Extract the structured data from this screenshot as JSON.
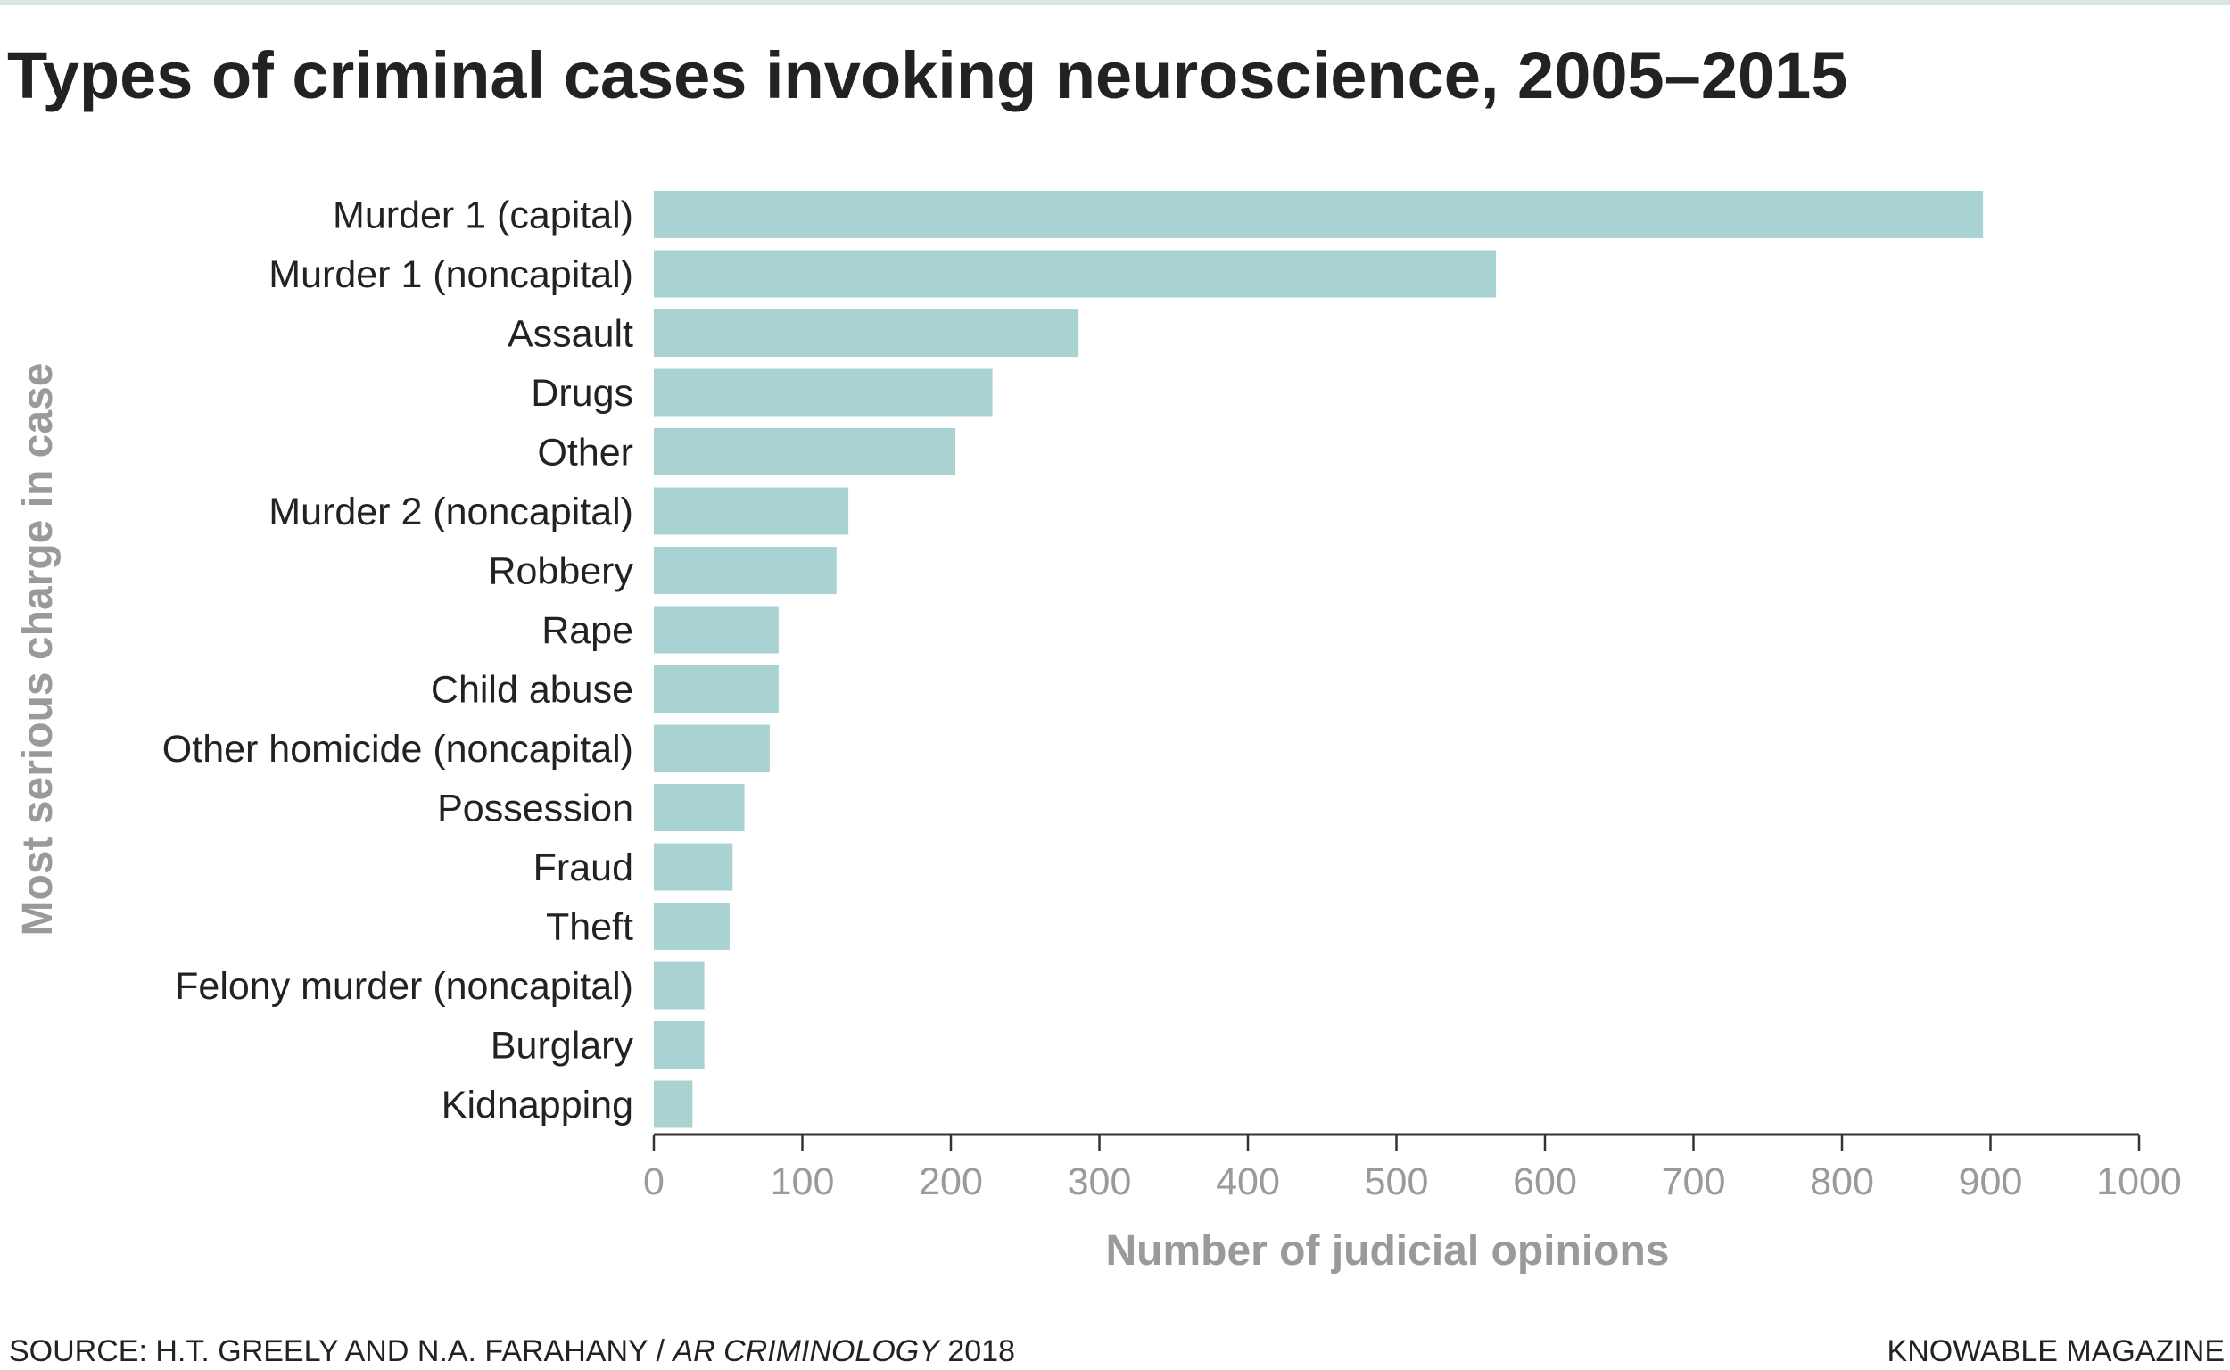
{
  "title": "Types of criminal cases invoking neuroscience, 2005–2015",
  "footer": {
    "source_prefix": "SOURCE: H.T. GREELY AND N.A. FARAHANY / ",
    "source_journal": "AR CRIMINOLOGY",
    "source_year": " 2018",
    "credit": "KNOWABLE MAGAZINE"
  },
  "colors": {
    "bar": "#a9d3d3",
    "axis": "#333333",
    "axis_label": "#9a9a9a",
    "tick_label": "#9a9a9a",
    "category_label": "#222222",
    "top_rule": "#d6e7e5"
  },
  "chart_data": {
    "type": "bar",
    "orientation": "horizontal",
    "categories": [
      "Murder 1 (capital)",
      "Murder 1 (noncapital)",
      "Assault",
      "Drugs",
      "Other",
      "Murder 2 (noncapital)",
      "Robbery",
      "Rape",
      "Child abuse",
      "Other homicide (noncapital)",
      "Possession",
      "Fraud",
      "Theft",
      "Felony murder (noncapital)",
      "Burglary",
      "Kidnapping"
    ],
    "values": [
      895,
      567,
      286,
      228,
      203,
      131,
      123,
      84,
      84,
      78,
      61,
      53,
      51,
      34,
      34,
      26
    ],
    "xlabel": "Number of judicial opinions",
    "ylabel": "Most serious charge in case",
    "xlim": [
      0,
      1000
    ],
    "xticks": [
      0,
      100,
      200,
      300,
      400,
      500,
      600,
      700,
      800,
      900,
      1000
    ],
    "grid": false,
    "legend": "none"
  }
}
